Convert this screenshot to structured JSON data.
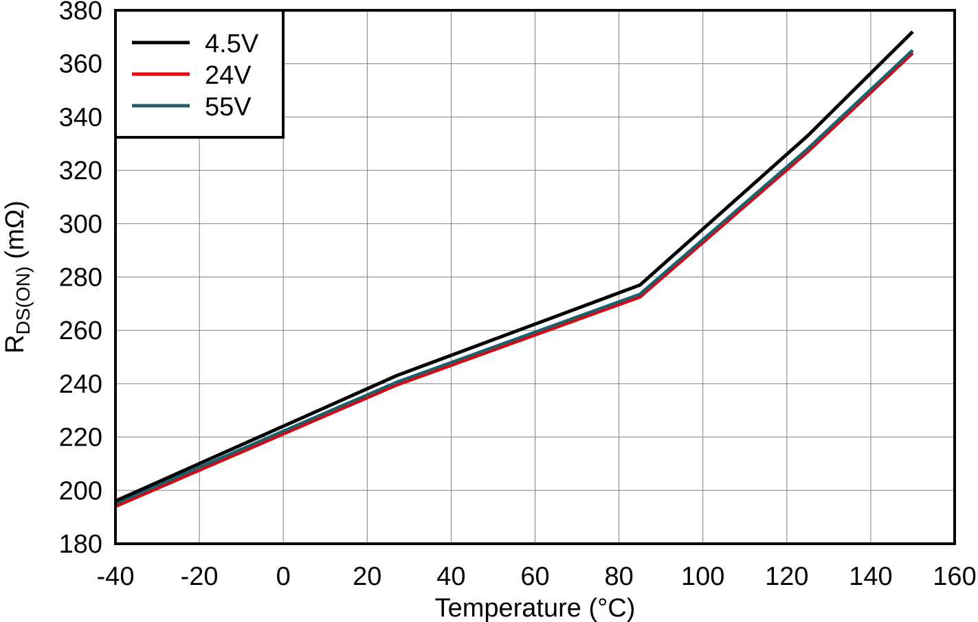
{
  "chart_data": {
    "type": "line",
    "title": "",
    "xlabel": "Temperature (°C)",
    "ylabel": {
      "main": "R",
      "subscript": "DS(ON)",
      "unit": " (mΩ)"
    },
    "xlim": [
      -40,
      160
    ],
    "ylim": [
      180,
      380
    ],
    "xticks": [
      -40,
      -20,
      0,
      20,
      40,
      60,
      80,
      100,
      120,
      140,
      160
    ],
    "yticks": [
      180,
      200,
      220,
      240,
      260,
      280,
      300,
      320,
      340,
      360,
      380
    ],
    "grid": true,
    "legend_position": "top-left",
    "series": [
      {
        "name": "4.5V",
        "color": "#000000",
        "x": [
          -40,
          27,
          85,
          125,
          150
        ],
        "y": [
          196,
          243,
          277,
          333,
          372
        ]
      },
      {
        "name": "24V",
        "color": "#e8000b",
        "x": [
          -40,
          27,
          85,
          125,
          150
        ],
        "y": [
          194,
          239.5,
          272.5,
          327,
          364
        ]
      },
      {
        "name": "55V",
        "color": "#1f5f6b",
        "x": [
          -40,
          27,
          85,
          125,
          150
        ],
        "y": [
          195,
          240.5,
          273.5,
          328,
          365
        ]
      }
    ]
  }
}
